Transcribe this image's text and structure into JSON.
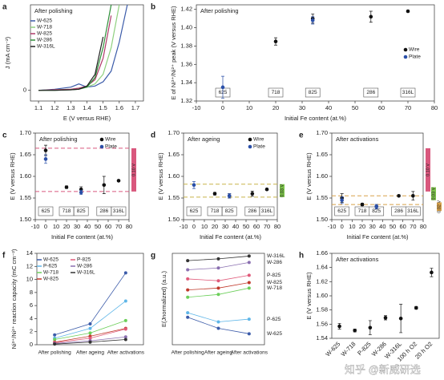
{
  "chart_data": [
    {
      "panel": "a",
      "type": "line",
      "annotation": "After polishing",
      "xlabel": "E (V versus RHE)",
      "ylabel": "J (mA cm⁻²)",
      "legend": "upper left",
      "x": [
        1.1,
        1.2,
        1.3,
        1.35,
        1.4,
        1.45,
        1.5,
        1.55,
        1.6,
        1.65,
        1.7
      ],
      "xlim": [
        1.05,
        1.75
      ],
      "xticks": [
        1.1,
        1.2,
        1.3,
        1.4,
        1.5,
        1.6,
        1.7
      ],
      "ylim": [
        -1,
        8
      ],
      "yticks": [
        0
      ],
      "series": [
        {
          "name": "W-625",
          "color": "#3b5ba9",
          "values": [
            0,
            0.1,
            0.3,
            0.6,
            0.3,
            0.4,
            0.8,
            1.8,
            4.5,
            8,
            null
          ]
        },
        {
          "name": "W-718",
          "color": "#8fd17f",
          "values": [
            0,
            0.05,
            0.1,
            0.2,
            0.3,
            0.6,
            1.5,
            4,
            8,
            null,
            null
          ]
        },
        {
          "name": "W-825",
          "color": "#b03a6a",
          "values": [
            0,
            0.05,
            0.1,
            0.2,
            0.4,
            1,
            3,
            7,
            null,
            null,
            null
          ]
        },
        {
          "name": "W-286",
          "color": "#2f8f3a",
          "values": [
            0,
            0,
            0.05,
            0.1,
            0.3,
            1.2,
            4,
            8,
            null,
            null,
            null
          ]
        },
        {
          "name": "W-316L",
          "color": "#222222",
          "values": [
            0,
            0,
            0.05,
            0.1,
            0.4,
            1.5,
            5,
            null,
            null,
            null,
            null
          ]
        }
      ]
    },
    {
      "panel": "b",
      "type": "scatter",
      "annotation": "After polishing",
      "xlabel": "Initial Fe content (at.%)",
      "ylabel": "E of Ni³⁺/Ni²⁺ peak (V versus RHE)",
      "legend": "right",
      "alloys": [
        "625",
        "718",
        "825",
        "286",
        "316L"
      ],
      "x": [
        0,
        20,
        34,
        56,
        70
      ],
      "xlim": [
        -10,
        80
      ],
      "xticks": [
        -10,
        0,
        10,
        20,
        30,
        40,
        50,
        60,
        70,
        80
      ],
      "ylim": [
        1.32,
        1.425
      ],
      "yticks": [
        1.32,
        1.34,
        1.36,
        1.38,
        {
          "value": 1.4,
          "label": "1.40"
        },
        1.42
      ],
      "series": [
        {
          "name": "Wire",
          "color": "#111111",
          "values": [
            null,
            1.385,
            1.41,
            1.412,
            1.418
          ],
          "errors": [
            null,
            0.004,
            0.005,
            0.006,
            0.001
          ]
        },
        {
          "name": "Plate",
          "color": "#2a4fa8",
          "values": [
            1.335,
            null,
            1.408,
            null,
            null
          ],
          "errors": [
            0.012,
            null,
            0.004,
            null,
            null
          ]
        }
      ]
    },
    {
      "panel": "c",
      "type": "scatter",
      "annotation": "After polishing",
      "xlabel": "Initial Fe content (at.%)",
      "ylabel": "E (V versus RHE)",
      "legend": "upper right",
      "alloys": [
        "625",
        "718",
        "825",
        "286",
        "316L"
      ],
      "x": [
        0,
        20,
        34,
        56,
        70
      ],
      "xlim": [
        -10,
        80
      ],
      "xticks": [
        -10,
        0,
        10,
        20,
        30,
        40,
        50,
        60,
        70,
        80
      ],
      "ylim": [
        1.5,
        1.7
      ],
      "yticks": [
        {
          "value": 1.5,
          "label": "1.50"
        },
        1.55,
        {
          "value": 1.6,
          "label": "1.60"
        },
        1.65,
        {
          "value": 1.7,
          "label": "1.70"
        }
      ],
      "hlines": [
        {
          "value": 1.665,
          "color": "#d9577d"
        },
        {
          "value": 1.565,
          "color": "#d9577d"
        }
      ],
      "bands": [
        {
          "label": "0.10 V",
          "range": [
            1.565,
            1.665
          ],
          "color": "#d9577d"
        }
      ],
      "series": [
        {
          "name": "Wire",
          "color": "#111111",
          "values": [
            1.66,
            1.575,
            1.57,
            1.58,
            1.59
          ],
          "errors": [
            0.012,
            0.003,
            0.006,
            0.02,
            0.002
          ]
        },
        {
          "name": "Plate",
          "color": "#2a4fa8",
          "values": [
            1.64,
            null,
            1.563,
            null,
            null
          ],
          "errors": [
            0.01,
            null,
            0.005,
            null,
            null
          ]
        }
      ]
    },
    {
      "panel": "d",
      "type": "scatter",
      "annotation": "After ageing",
      "xlabel": "Initial Fe content (at.%)",
      "ylabel": "E (V versus RHE)",
      "legend": "upper right",
      "alloys": [
        "625",
        "718",
        "825",
        "286",
        "316L"
      ],
      "x": [
        0,
        20,
        34,
        56,
        70
      ],
      "xlim": [
        -10,
        80
      ],
      "xticks": [
        -10,
        0,
        10,
        20,
        30,
        40,
        50,
        60,
        70,
        80
      ],
      "ylim": [
        1.5,
        1.7
      ],
      "yticks": [
        {
          "value": 1.5,
          "label": "1.50"
        },
        1.55,
        {
          "value": 1.6,
          "label": "1.60"
        },
        1.65,
        {
          "value": 1.7,
          "label": "1.70"
        }
      ],
      "hlines": [
        {
          "value": 1.582,
          "color": "#c8b44a"
        },
        {
          "value": 1.552,
          "color": "#c8b44a"
        }
      ],
      "bands": [
        {
          "label": "0.03 V",
          "range": [
            1.552,
            1.582
          ],
          "color": "#7cc24a"
        }
      ],
      "series": [
        {
          "name": "Wire",
          "color": "#111111",
          "values": [
            null,
            1.56,
            1.555,
            1.56,
            1.57
          ],
          "errors": [
            null,
            0.003,
            0.005,
            0.006,
            0.002
          ]
        },
        {
          "name": "Plate",
          "color": "#2a4fa8",
          "values": [
            1.58,
            null,
            1.555,
            null,
            null
          ],
          "errors": [
            0.008,
            null,
            0.005,
            null,
            null
          ]
        }
      ]
    },
    {
      "panel": "e",
      "type": "scatter",
      "annotation": "After activations",
      "xlabel": "Initial Fe content (at.%)",
      "ylabel": "E (V versus RHE)",
      "alloys": [
        "625",
        "718",
        "825",
        "286",
        "316L"
      ],
      "x": [
        0,
        20,
        34,
        56,
        70
      ],
      "xlim": [
        -10,
        80
      ],
      "xticks": [
        -10,
        0,
        10,
        20,
        30,
        40,
        50,
        60,
        70,
        80
      ],
      "ylim": [
        1.5,
        1.7
      ],
      "yticks": [
        {
          "value": 1.5,
          "label": "1.50"
        },
        1.55,
        {
          "value": 1.6,
          "label": "1.60"
        },
        1.65,
        {
          "value": 1.7,
          "label": "1.70"
        }
      ],
      "hlines": [
        {
          "value": 1.555,
          "color": "#d8a24a"
        },
        {
          "value": 1.535,
          "color": "#d8a24a"
        }
      ],
      "bands": [
        {
          "label": "0.10 V",
          "range": [
            1.565,
            1.665
          ],
          "color": "#d9577d"
        },
        {
          "label": "0.03 V",
          "range": [
            1.545,
            1.575
          ],
          "color": "#7cc24a"
        },
        {
          "label": "0.02 V",
          "range": [
            1.52,
            1.54
          ],
          "color": "#d8a24a"
        }
      ],
      "series": [
        {
          "name": "Wire",
          "color": "#111111",
          "values": [
            1.55,
            1.535,
            1.53,
            1.555,
            1.555
          ],
          "errors": [
            0.01,
            0.003,
            0.005,
            0.002,
            0.01
          ]
        },
        {
          "name": "Plate",
          "color": "#2a4fa8",
          "values": [
            1.545,
            null,
            1.53,
            null,
            null
          ],
          "errors": [
            0.008,
            null,
            0.005,
            null,
            null
          ]
        }
      ]
    },
    {
      "panel": "f",
      "type": "line",
      "ylabel": "Ni³⁺/Ni²⁺ reaction capacity (mC cm⁻²)",
      "legend": "upper left",
      "categories": [
        "After polishing",
        "After ageing",
        "After activations"
      ],
      "ylim": [
        0,
        14
      ],
      "yticks": [
        0,
        2,
        4,
        6,
        8,
        10,
        12,
        14
      ],
      "series": [
        {
          "name": "W-625",
          "color": "#3b5ba9",
          "values": [
            1.5,
            3.2,
            11
          ]
        },
        {
          "name": "P-625",
          "color": "#5fb6e8",
          "values": [
            1.0,
            2.5,
            6.7
          ]
        },
        {
          "name": "W-718",
          "color": "#6ccf5a",
          "values": [
            0.8,
            1.8,
            3.7
          ]
        },
        {
          "name": "W-825",
          "color": "#c0392b",
          "values": [
            0.4,
            1.3,
            2.5
          ]
        },
        {
          "name": "P-825",
          "color": "#e05a7a",
          "values": [
            0.3,
            1.0,
            2.4
          ]
        },
        {
          "name": "W-286",
          "color": "#8a6fb0",
          "values": [
            0.2,
            0.6,
            1.2
          ]
        },
        {
          "name": "W-316L",
          "color": "#333333",
          "values": [
            0.1,
            0.4,
            0.8
          ]
        }
      ]
    },
    {
      "panel": "g",
      "type": "line",
      "ylabel": "E(Jnormalized) (a.u.)",
      "legend": "line end",
      "categories": [
        "After polishing",
        "After ageing",
        "After activations"
      ],
      "ylim": [
        0,
        10
      ],
      "series": [
        {
          "name": "W-316L",
          "color": "#333333",
          "values": [
            9.2,
            9.4,
            9.7
          ]
        },
        {
          "name": "W-286",
          "color": "#8a6fb0",
          "values": [
            8.2,
            8.4,
            9.0
          ]
        },
        {
          "name": "P-825",
          "color": "#e05a7a",
          "values": [
            7.2,
            7.0,
            7.6
          ]
        },
        {
          "name": "W-825",
          "color": "#c0392b",
          "values": [
            6.0,
            6.2,
            6.8
          ]
        },
        {
          "name": "W-718",
          "color": "#6ccf5a",
          "values": [
            5.2,
            5.5,
            6.2
          ]
        },
        {
          "name": "P-625",
          "color": "#5fb6e8",
          "values": [
            3.5,
            2.5,
            2.8
          ]
        },
        {
          "name": "W-625",
          "color": "#3b5ba9",
          "values": [
            3.0,
            1.8,
            1.2
          ]
        }
      ]
    },
    {
      "panel": "h",
      "type": "scatter",
      "annotation": "After activations",
      "ylabel": "E (V versus RHE)",
      "categories": [
        "W-625",
        "W-718",
        "P-825",
        "W-286",
        "W-316L",
        "100 h O2",
        "20 h O2"
      ],
      "ylim": [
        1.54,
        1.66
      ],
      "yticks": [
        1.54,
        1.56,
        1.58,
        {
          "value": 1.6,
          "label": "1.60"
        },
        1.62,
        1.64,
        1.66
      ],
      "series": [
        {
          "name": "E",
          "color": "#111111",
          "values": [
            1.557,
            1.551,
            1.555,
            1.569,
            1.568,
            1.583,
            1.633
          ],
          "errors": [
            0.004,
            0.002,
            0.01,
            0.003,
            0.02,
            0.002,
            0.006
          ]
        }
      ]
    }
  ],
  "watermark": "知乎 @新威研选"
}
